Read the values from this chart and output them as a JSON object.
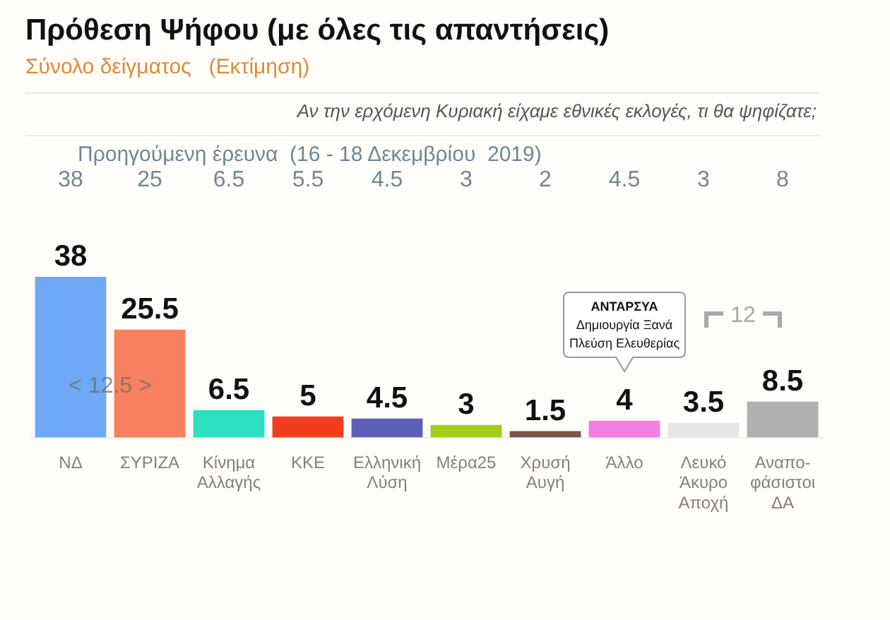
{
  "chart_data": {
    "type": "bar",
    "title": "Πρόθεση Ψήφου (με όλες τις απαντήσεις)",
    "subtitle": "Σύνολο δείγματος   (Εκτίμηση)",
    "categories": [
      "ΝΔ",
      "ΣΥΡΙΖΑ",
      "Κίνημα Αλλαγής",
      "ΚΚΕ",
      "Ελληνική Λύση",
      "Μέρα25",
      "Χρυσή Αυγή",
      "Άλλο",
      "Λευκό Άκυρο Αποχή",
      "Αναπο-φάσιστοι ΔΑ"
    ],
    "values": [
      38,
      25.5,
      6.5,
      5,
      4.5,
      3,
      1.5,
      4,
      3.5,
      8.5
    ],
    "colors": [
      "#6fa8f5",
      "#f7815f",
      "#2de0c0",
      "#f23d1c",
      "#5b5fb8",
      "#9fcf1a",
      "#7d5548",
      "#f47fe4",
      "#e6e6e6",
      "#b0b0b0"
    ],
    "data_labels": true,
    "tick_labels": "x",
    "grid": false,
    "legend": false,
    "annotations": [
      "Αν την ερχόμενη Κυριακή είχαμε εθνικές εκλογές, τι θα ψηφίζατε;",
      "Προηγούμενη έρευνα  (16 - 18 Δεκεμβρίου  2019)",
      "38",
      "25",
      "6.5",
      "5.5",
      "4.5",
      "3",
      "2",
      "4.5",
      "3",
      "8",
      "< 12.5 >",
      "12",
      "ΑΝΤΑΡΣΥΑ\nΔημιουργία Ξανά\nΠλεύση Ελευθερίας"
    ]
  }
}
